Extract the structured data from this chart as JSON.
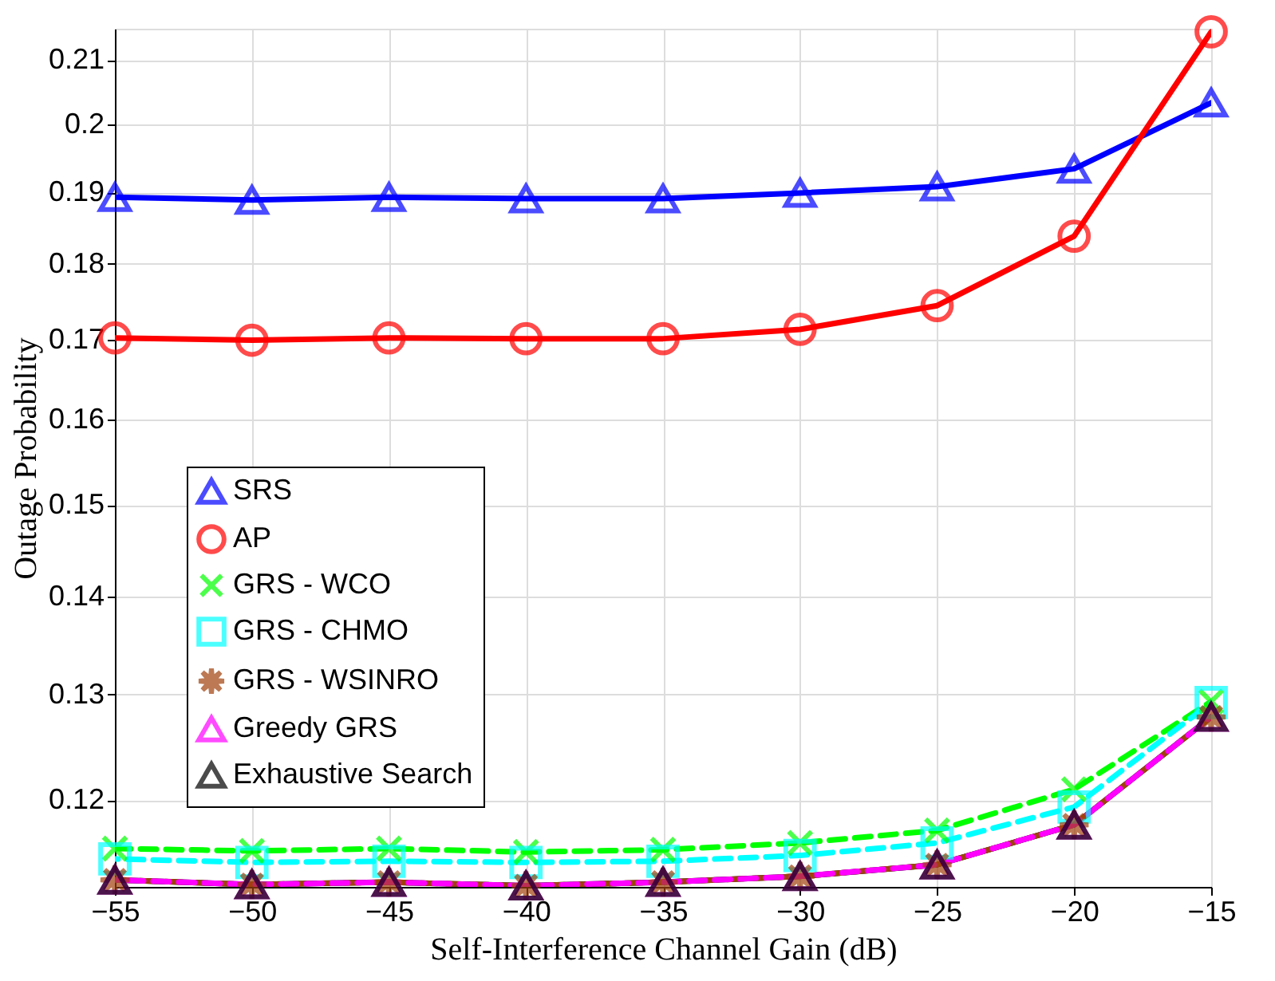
{
  "chart_data": {
    "type": "line",
    "xlabel": "Self-Interference Channel Gain (dB)",
    "ylabel": "Outage Probability",
    "x": [
      -55,
      -50,
      -45,
      -40,
      -35,
      -30,
      -25,
      -20,
      -15
    ],
    "xlim": [
      -55,
      -15
    ],
    "xticks": [
      -55,
      -50,
      -45,
      -40,
      -35,
      -30,
      -25,
      -20,
      -15
    ],
    "ylim": [
      0.1124,
      0.215
    ],
    "yticks": [
      0.12,
      0.13,
      0.14,
      0.15,
      0.16,
      0.17,
      0.18,
      0.19,
      0.2,
      0.21
    ],
    "log": "y",
    "grid": true,
    "legend": "left",
    "series": [
      {
        "name": "SRS",
        "color": "#0000ff",
        "marker": "triangle",
        "line_style": "solid",
        "values": [
          0.1893,
          0.1889,
          0.1893,
          0.1891,
          0.1891,
          0.1899,
          0.1908,
          0.1934,
          0.2033
        ]
      },
      {
        "name": "AP",
        "color": "#ff0000",
        "marker": "circle",
        "line_style": "solid",
        "values": [
          0.1702,
          0.1699,
          0.1702,
          0.1701,
          0.1701,
          0.1713,
          0.1744,
          0.1838,
          0.2145
        ]
      },
      {
        "name": "GRS - WCO",
        "color": "#00ff00",
        "marker": "cross",
        "line_style": "dashed",
        "values": [
          0.1157,
          0.1155,
          0.1157,
          0.1154,
          0.1156,
          0.1162,
          0.1173,
          0.121,
          0.1293
        ]
      },
      {
        "name": "GRS - CHMO",
        "color": "#00ffff",
        "marker": "square",
        "line_style": "dashed",
        "values": [
          0.1148,
          0.1145,
          0.1146,
          0.1145,
          0.1146,
          0.1151,
          0.1162,
          0.1194,
          0.1292
        ]
      },
      {
        "name": "GRS - WSINRO",
        "color": "#a0410d",
        "marker": "star",
        "line_style": "dashed",
        "values": [
          0.113,
          0.1126,
          0.1128,
          0.1125,
          0.1128,
          0.1133,
          0.1143,
          0.1178,
          0.1278
        ]
      },
      {
        "name": "Greedy GRS",
        "color": "#ff00ff",
        "marker": "triangle",
        "line_style": "dashed",
        "values": [
          0.113,
          0.1126,
          0.1128,
          0.1125,
          0.1128,
          0.1133,
          0.1143,
          0.1178,
          0.1278
        ]
      },
      {
        "name": "Exhaustive Search",
        "color": "#000000",
        "marker": "triangle",
        "line_style": "solid",
        "values": [
          0.113,
          0.1126,
          0.1128,
          0.1125,
          0.1128,
          0.1133,
          0.1143,
          0.1178,
          0.1278
        ]
      }
    ]
  }
}
